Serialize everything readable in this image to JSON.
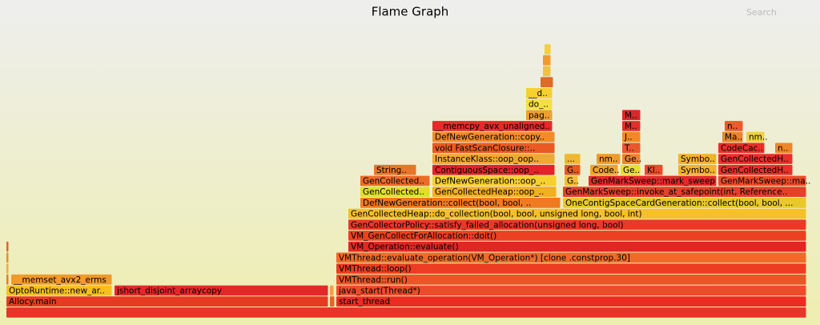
{
  "chart_data": {
    "type": "flame",
    "title": "Flame Graph",
    "search": "Search",
    "frames": [
      {
        "label": null,
        "depth": 0,
        "start": 0,
        "width": 999,
        "color": "#e8352a"
      },
      {
        "label": "Allocy.main",
        "depth": 1,
        "start": 0,
        "width": 402,
        "color": "#e63a22"
      },
      {
        "label": null,
        "depth": 1,
        "start": 404,
        "width": 6,
        "color": "#e5622a"
      },
      {
        "label": "start_thread",
        "depth": 1,
        "start": 412,
        "width": 587,
        "color": "#ec2c22"
      },
      {
        "label": "OptoRuntime::new_ar..",
        "depth": 2,
        "start": 0,
        "width": 132,
        "color": "#f7c021"
      },
      {
        "label": "jshort_disjoint_arraycopy",
        "depth": 2,
        "start": 135,
        "width": 267,
        "color": "#e5272a"
      },
      {
        "label": null,
        "depth": 2,
        "start": 404,
        "width": 5,
        "color": "#f0a040"
      },
      {
        "label": "java_start(Thread*)",
        "depth": 2,
        "start": 412,
        "width": 587,
        "color": "#ed4b2a"
      },
      {
        "label": "__memset_avx2_erms",
        "depth": 3,
        "start": 6,
        "width": 126,
        "color": "#f19a2a"
      },
      {
        "label": null,
        "depth": 3,
        "start": 0,
        "width": 3,
        "color": "#e87a2a"
      },
      {
        "label": "VMThread::run()",
        "depth": 3,
        "start": 412,
        "width": 587,
        "color": "#ee5428"
      },
      {
        "label": null,
        "depth": 4,
        "start": 0,
        "width": 3,
        "color": "#f0b030"
      },
      {
        "label": "VMThread::loop()",
        "depth": 4,
        "start": 412,
        "width": 587,
        "color": "#ec3c22"
      },
      {
        "label": null,
        "depth": 5,
        "start": 0,
        "width": 3,
        "color": "#e8902a"
      },
      {
        "label": "VMThread::evaluate_operation(VM_Operation*) [clone .constprop.30]",
        "depth": 5,
        "start": 412,
        "width": 587,
        "color": "#f06a2a"
      },
      {
        "label": null,
        "depth": 6,
        "start": 0,
        "width": 3,
        "color": "#e6602a"
      },
      {
        "label": "VM_Operation::evaluate()",
        "depth": 6,
        "start": 427,
        "width": 572,
        "color": "#dc2a22"
      },
      {
        "label": "VM_GenCollectForAllocation::doit()",
        "depth": 7,
        "start": 427,
        "width": 572,
        "color": "#ec4022"
      },
      {
        "label": "GenCollectorPolicy::satisfy_failed_allocation(unsigned long, bool)",
        "depth": 8,
        "start": 427,
        "width": 572,
        "color": "#e83a26"
      },
      {
        "label": "GenCollectedHeap::do_collection(bool, bool, unsigned long, bool, int)",
        "depth": 9,
        "start": 427,
        "width": 572,
        "color": "#f5c02a"
      },
      {
        "label": "DefNewGeneration::collect(bool, bool, ..",
        "depth": 10,
        "start": 442,
        "width": 250,
        "color": "#f07a22"
      },
      {
        "label": "OneContigSpaceCardGeneration::collect(bool, bool, ...",
        "depth": 10,
        "start": 695,
        "width": 304,
        "color": "#e8c82a"
      },
      {
        "label": "GenCollected..",
        "depth": 11,
        "start": 442,
        "width": 87,
        "color": "#e0e02a"
      },
      {
        "label": "GenCollectedHeap::oop_..",
        "depth": 11,
        "start": 532,
        "width": 155,
        "color": "#f0b022"
      },
      {
        "label": "GenMarkSweep::invoke_at_safepoint(int, Reference..",
        "depth": 11,
        "start": 695,
        "width": 304,
        "color": "#e6402a"
      },
      {
        "label": "GenCollected..",
        "depth": 12,
        "start": 442,
        "width": 87,
        "color": "#ee6a28"
      },
      {
        "label": "DefNewGeneration::oop_..",
        "depth": 12,
        "start": 532,
        "width": 155,
        "color": "#f5d030"
      },
      {
        "label": "G..",
        "depth": 12,
        "start": 697,
        "width": 17,
        "color": "#f0c030"
      },
      {
        "label": "GenMarkSweep::mark_sweep",
        "depth": 12,
        "start": 727,
        "width": 160,
        "color": "#e22a2a"
      },
      {
        "label": "GenMarkSweep::ma..",
        "depth": 12,
        "start": 889,
        "width": 110,
        "color": "#ee4a2a"
      },
      {
        "label": "String..",
        "depth": 13,
        "start": 459,
        "width": 53,
        "color": "#e8762a"
      },
      {
        "label": "ContiguousSpace::oop_..",
        "depth": 13,
        "start": 532,
        "width": 153,
        "color": "#e2242a"
      },
      {
        "label": "G..",
        "depth": 13,
        "start": 697,
        "width": 20,
        "color": "#e65a22"
      },
      {
        "label": "Code..",
        "depth": 13,
        "start": 729,
        "width": 35,
        "color": "#f0a22a"
      },
      {
        "label": "Ge..",
        "depth": 13,
        "start": 767,
        "width": 25,
        "color": "#e8e02a"
      },
      {
        "label": "Kl..",
        "depth": 13,
        "start": 797,
        "width": 23,
        "color": "#ee4a2a"
      },
      {
        "label": "Symbo..",
        "depth": 13,
        "start": 839,
        "width": 48,
        "color": "#f5b030"
      },
      {
        "label": "GenCollectedH..",
        "depth": 13,
        "start": 889,
        "width": 93,
        "color": "#e8302a"
      },
      {
        "label": "InstanceKlass::oop_oop..",
        "depth": 14,
        "start": 532,
        "width": 153,
        "color": "#f0a830"
      },
      {
        "label": "...",
        "depth": 14,
        "start": 697,
        "width": 20,
        "color": "#f0b830"
      },
      {
        "label": "nm..",
        "depth": 14,
        "start": 737,
        "width": 30,
        "color": "#f09a2a"
      },
      {
        "label": "Ge..",
        "depth": 14,
        "start": 769,
        "width": 23,
        "color": "#e8862a"
      },
      {
        "label": "Symbo..",
        "depth": 14,
        "start": 839,
        "width": 48,
        "color": "#f5b030"
      },
      {
        "label": "GenCollectedH..",
        "depth": 14,
        "start": 889,
        "width": 93,
        "color": "#e8302a"
      },
      {
        "label": "void FastScanClosure::..",
        "depth": 15,
        "start": 532,
        "width": 153,
        "color": "#ec5a24"
      },
      {
        "label": "T..",
        "depth": 15,
        "start": 769,
        "width": 23,
        "color": "#e8582a"
      },
      {
        "label": "CodeCac..",
        "depth": 15,
        "start": 889,
        "width": 58,
        "color": "#e8302a"
      },
      {
        "label": "n..",
        "depth": 15,
        "start": 960,
        "width": 22,
        "color": "#f0862a"
      },
      {
        "label": "DefNewGeneration::copy..",
        "depth": 16,
        "start": 532,
        "width": 153,
        "color": "#f08c2a"
      },
      {
        "label": "J..",
        "depth": 16,
        "start": 769,
        "width": 23,
        "color": "#f08a22"
      },
      {
        "label": "Ma..",
        "depth": 16,
        "start": 894,
        "width": 26,
        "color": "#e8862a"
      },
      {
        "label": "nm..",
        "depth": 16,
        "start": 924,
        "width": 23,
        "color": "#f0d040"
      },
      {
        "label": "__memcpy_avx_unaligned..",
        "depth": 17,
        "start": 532,
        "width": 150,
        "color": "#e62a2a"
      },
      {
        "label": "M..",
        "depth": 17,
        "start": 769,
        "width": 23,
        "color": "#e0302a"
      },
      {
        "label": "n..",
        "depth": 17,
        "start": 897,
        "width": 23,
        "color": "#ee5a2a"
      },
      {
        "label": "pag..",
        "depth": 18,
        "start": 649,
        "width": 33,
        "color": "#f0a030"
      },
      {
        "label": "M..",
        "depth": 18,
        "start": 769,
        "width": 23,
        "color": "#d8282a"
      },
      {
        "label": "do_..",
        "depth": 19,
        "start": 649,
        "width": 33,
        "color": "#f5e040"
      },
      {
        "label": "__d..",
        "depth": 20,
        "start": 649,
        "width": 33,
        "color": "#f5d030"
      },
      {
        "label": null,
        "depth": 21,
        "start": 667,
        "width": 16,
        "color": "#e06a2a"
      },
      {
        "label": null,
        "depth": 22,
        "start": 670,
        "width": 10,
        "color": "#f0c040"
      },
      {
        "label": null,
        "depth": 23,
        "start": 670,
        "width": 10,
        "color": "#f09a30"
      },
      {
        "label": null,
        "depth": 24,
        "start": 672,
        "width": 8,
        "color": "#f0d040"
      }
    ]
  }
}
